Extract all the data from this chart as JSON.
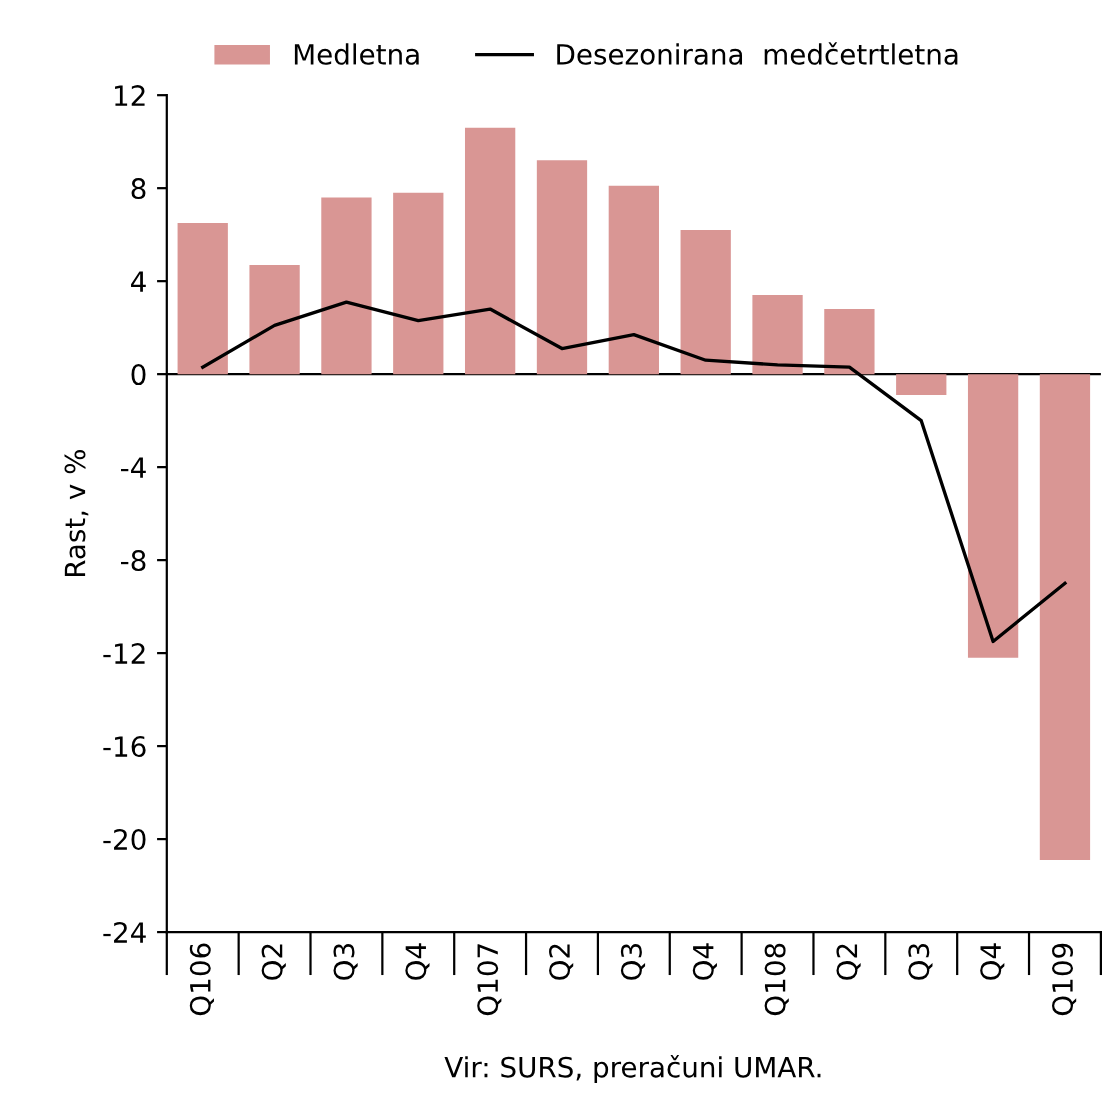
{
  "chart_data": {
    "type": "bar",
    "ylabel": "Rast, v %",
    "annotations": [
      "Vir: SURS, preračuni UMAR."
    ],
    "categories": [
      "Q106",
      "Q2",
      "Q3",
      "Q4",
      "Q107",
      "Q2",
      "Q3",
      "Q4",
      "Q108",
      "Q2",
      "Q3",
      "Q4",
      "Q109"
    ],
    "series": [
      {
        "name": "Medletna",
        "color": "#d99694",
        "values": [
          6.5,
          4.7,
          7.6,
          7.8,
          10.6,
          9.2,
          8.1,
          6.2,
          3.4,
          2.8,
          -0.9,
          -12.2,
          -20.9
        ]
      },
      {
        "name": "Desezonirana  medčetrtletna",
        "type": "line",
        "color": "#000000",
        "values": [
          0.3,
          2.1,
          3.1,
          2.3,
          2.8,
          1.1,
          1.7,
          0.6,
          0.4,
          0.3,
          -2.0,
          -11.5,
          -9.0
        ]
      }
    ],
    "ylim": [
      -24,
      12
    ],
    "yticks": [
      -24,
      -20,
      -16,
      -12,
      -8,
      -4,
      0,
      4,
      8,
      12
    ],
    "ref_lines": [
      {
        "axis": "y",
        "value": 0,
        "color": "#000000"
      }
    ],
    "grid": false,
    "legend": "top",
    "marker": "none",
    "line_style": "solid"
  }
}
